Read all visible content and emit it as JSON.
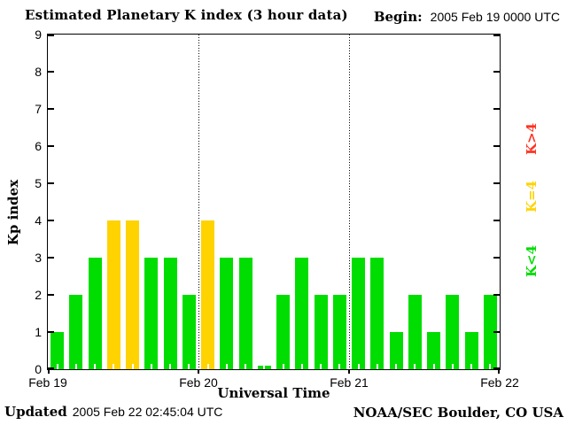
{
  "header": {
    "title": "Estimated Planetary K index (3 hour data)",
    "begin_label": "Begin:",
    "begin_value": "2005 Feb 19 0000 UTC"
  },
  "chart_data": {
    "type": "bar",
    "title": "Estimated Planetary K index (3 hour data)",
    "xlabel": "Universal Time",
    "ylabel": "Kp index",
    "ylim": [
      0,
      9
    ],
    "y_ticks": [
      0,
      1,
      2,
      3,
      4,
      5,
      6,
      7,
      8,
      9
    ],
    "x_tick_labels": [
      "Feb 19",
      "Feb 20",
      "Feb 21",
      "Feb 22"
    ],
    "begin": "2005 Feb 19 0000 UTC",
    "bin_hours": 3,
    "bars_per_day": 8,
    "values": [
      1,
      2,
      3,
      4,
      4,
      3,
      3,
      2,
      4,
      3,
      3,
      0,
      2,
      3,
      2,
      2,
      3,
      3,
      1,
      2,
      1,
      2,
      1,
      2
    ],
    "values_by_day": {
      "Feb 19": [
        1,
        2,
        3,
        4,
        4,
        3,
        3,
        2
      ],
      "Feb 20": [
        4,
        3,
        3,
        0,
        2,
        3,
        2,
        2
      ],
      "Feb 21": [
        3,
        3,
        1,
        2,
        1,
        2,
        1,
        2
      ]
    },
    "color_rule": "green K<4, yellow K=4, red K>4",
    "colors": {
      "low": "#00dd00",
      "mid": "#ffd300",
      "high": "#ff3322"
    },
    "day_boundaries_dotted": true,
    "legend_position": "right",
    "legend": [
      {
        "label": "K>4",
        "color": "#ff3322"
      },
      {
        "label": "K=4",
        "color": "#ffd300"
      },
      {
        "label": "K<4",
        "color": "#00dd00"
      }
    ]
  },
  "footer": {
    "updated_label": "Updated",
    "updated_value": "2005 Feb 22 02:45:04 UTC",
    "credit": "NOAA/SEC Boulder, CO USA"
  }
}
